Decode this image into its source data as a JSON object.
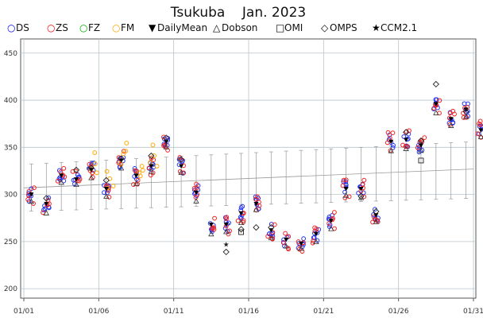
{
  "chart_data": {
    "type": "scatter",
    "title": "Tsukuba    Jan. 2023",
    "xlabel": "",
    "ylabel": "",
    "ylim": [
      190,
      465
    ],
    "yticks": [
      200,
      250,
      300,
      350,
      400,
      450
    ],
    "xlim": [
      1,
      31
    ],
    "xticks": [
      {
        "day": 1,
        "label": "01/01"
      },
      {
        "day": 6,
        "label": "01/06"
      },
      {
        "day": 11,
        "label": "01/11"
      },
      {
        "day": 16,
        "label": "01/16"
      },
      {
        "day": 21,
        "label": "01/21"
      },
      {
        "day": 26,
        "label": "01/26"
      },
      {
        "day": 31,
        "label": "01/31"
      }
    ],
    "grid": true,
    "legend_position": "top",
    "legend": [
      {
        "symbol": "○",
        "label": "DS",
        "color": "#0000ff"
      },
      {
        "symbol": "○",
        "label": "ZS",
        "color": "#ff0000"
      },
      {
        "symbol": "○",
        "label": "FZ",
        "color": "#00aa00"
      },
      {
        "symbol": "○",
        "label": "FM",
        "color": "#ffaa00"
      },
      {
        "symbol": "▼",
        "label": "DailyMean",
        "color": "#000000"
      },
      {
        "symbol": "△",
        "label": "Dobson",
        "color": "#000000"
      },
      {
        "symbol": "□",
        "label": "OMI",
        "color": "#000000"
      },
      {
        "symbol": "◇",
        "label": "OMPS",
        "color": "#000000"
      },
      {
        "symbol": "★",
        "label": "CCM2.1",
        "color": "#000000"
      }
    ],
    "colors": {
      "DS": "#2233ee",
      "ZS": "#ee2222",
      "FZ": "#22aa22",
      "FM": "#ffaa00",
      "grid": "#b8c4cc",
      "climatology": "#999999"
    },
    "daily_mean": [
      {
        "day": 1.5,
        "value": 300
      },
      {
        "day": 2.5,
        "value": 290
      },
      {
        "day": 3.5,
        "value": 320
      },
      {
        "day": 4.5,
        "value": 316
      },
      {
        "day": 5.5,
        "value": 326
      },
      {
        "day": 6.5,
        "value": 306
      },
      {
        "day": 7.5,
        "value": 336
      },
      {
        "day": 8.5,
        "value": 320
      },
      {
        "day": 9.5,
        "value": 330
      },
      {
        "day": 10.5,
        "value": 356
      },
      {
        "day": 11.5,
        "value": 330
      },
      {
        "day": 12.5,
        "value": 302
      },
      {
        "day": 13.5,
        "value": 268
      },
      {
        "day": 14.5,
        "value": 268
      },
      {
        "day": 15.5,
        "value": 280
      },
      {
        "day": 16.5,
        "value": 290
      },
      {
        "day": 17.5,
        "value": 262
      },
      {
        "day": 18.5,
        "value": 252
      },
      {
        "day": 19.5,
        "value": 248
      },
      {
        "day": 20.5,
        "value": 258
      },
      {
        "day": 21.5,
        "value": 272
      },
      {
        "day": 22.5,
        "value": 306
      },
      {
        "day": 23.5,
        "value": 306
      },
      {
        "day": 24.5,
        "value": 278
      },
      {
        "day": 25.5,
        "value": 356
      },
      {
        "day": 26.5,
        "value": 358
      },
      {
        "day": 27.5,
        "value": 352
      },
      {
        "day": 28.5,
        "value": 396
      },
      {
        "day": 29.5,
        "value": 380
      },
      {
        "day": 30.5,
        "value": 390
      },
      {
        "day": 31.5,
        "value": 368
      }
    ],
    "omps": [
      {
        "day": 2.5,
        "value": 296
      },
      {
        "day": 4.5,
        "value": 326
      },
      {
        "day": 5.5,
        "value": 328
      },
      {
        "day": 6.5,
        "value": 315
      },
      {
        "day": 7.5,
        "value": 338
      },
      {
        "day": 9.5,
        "value": 341
      },
      {
        "day": 10.5,
        "value": 360
      },
      {
        "day": 11.5,
        "value": 337
      },
      {
        "day": 14.5,
        "value": 239
      },
      {
        "day": 15.5,
        "value": 263
      },
      {
        "day": 16.5,
        "value": 265
      },
      {
        "day": 17.5,
        "value": 265
      },
      {
        "day": 23.5,
        "value": 298
      },
      {
        "day": 24.5,
        "value": 282
      },
      {
        "day": 26.5,
        "value": 366
      },
      {
        "day": 27.5,
        "value": 357
      },
      {
        "day": 28.5,
        "value": 417
      },
      {
        "day": 30.5,
        "value": 388
      }
    ],
    "omi": [
      {
        "day": 15.5,
        "value": 260
      },
      {
        "day": 27.5,
        "value": 336
      }
    ],
    "ccm": [
      {
        "day": 14.5,
        "value": 247
      }
    ],
    "climatology": {
      "day": [
        1,
        31
      ],
      "mean": [
        307,
        327
      ],
      "range": [
        [
          1,
          282,
          332
        ],
        [
          31,
          296,
          356
        ]
      ]
    }
  }
}
